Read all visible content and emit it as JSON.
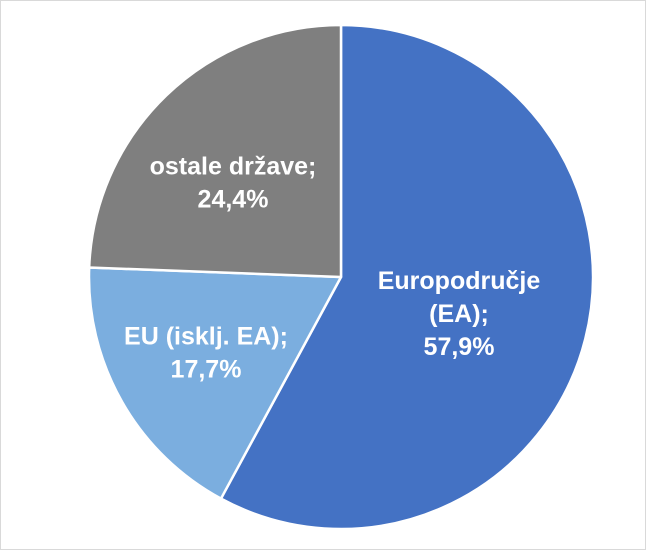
{
  "chart_data": {
    "type": "pie",
    "slices": [
      {
        "name": "Europodručje (EA)",
        "value": 57.9,
        "label_lines": [
          "Europodručje",
          "(EA);",
          "57,9%"
        ],
        "color": "#4472C4"
      },
      {
        "name": "EU (isklj. EA)",
        "value": 17.7,
        "label_lines": [
          "EU (isklj. EA);",
          "17,7%"
        ],
        "color": "#7BAEDF"
      },
      {
        "name": "ostale države",
        "value": 24.4,
        "label_lines": [
          "ostale države;",
          "24,4%"
        ],
        "color": "#7F7F7F"
      }
    ],
    "start_angle": "12 o'clock",
    "direction": "clockwise",
    "legend": "none",
    "slice_border_color": "#FFFFFF"
  }
}
